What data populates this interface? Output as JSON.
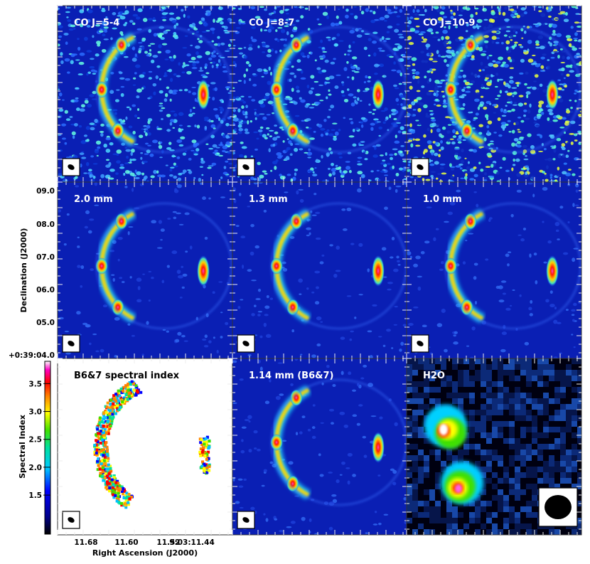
{
  "chart_data": {
    "type": "heatmap",
    "layout": "3x3 grid of interferometric maps",
    "colormap": "jet",
    "panels": [
      {
        "label": "CO J=5-4",
        "content": "ring",
        "noise": "moderate"
      },
      {
        "label": "CO J=8-7",
        "content": "ring",
        "noise": "moderate"
      },
      {
        "label": "CO J=10-9",
        "content": "ring",
        "noise": "high"
      },
      {
        "label": "2.0 mm",
        "content": "ring",
        "noise": "low"
      },
      {
        "label": "1.3 mm",
        "content": "ring",
        "noise": "low"
      },
      {
        "label": "1.0 mm",
        "content": "ring",
        "noise": "low"
      },
      {
        "label": "B6&7 spectral index",
        "content": "spectral-index"
      },
      {
        "label": "1.14 mm (B6&7)",
        "content": "ring",
        "noise": "low"
      },
      {
        "label": "H2O",
        "content": "blobs",
        "noise": "pixelated"
      }
    ],
    "ylabel": "Declination (J2000)",
    "yticks": [
      "09.0",
      "08.0",
      "07.0",
      "06.0",
      "05.0",
      "+0:39:04.0"
    ],
    "xlabel": "Right Ascension (J2000)",
    "xticks": [
      "11.68",
      "11.60",
      "11.52",
      "9:03:11.44"
    ],
    "colorbar": {
      "label": "Spectral Index",
      "ticks": [
        "3.5",
        "3.0",
        "2.5",
        "2.0",
        "1.5"
      ],
      "tick_values": [
        3.5,
        3.0,
        2.5,
        2.0,
        1.5
      ],
      "range": [
        0.8,
        3.9
      ]
    }
  }
}
